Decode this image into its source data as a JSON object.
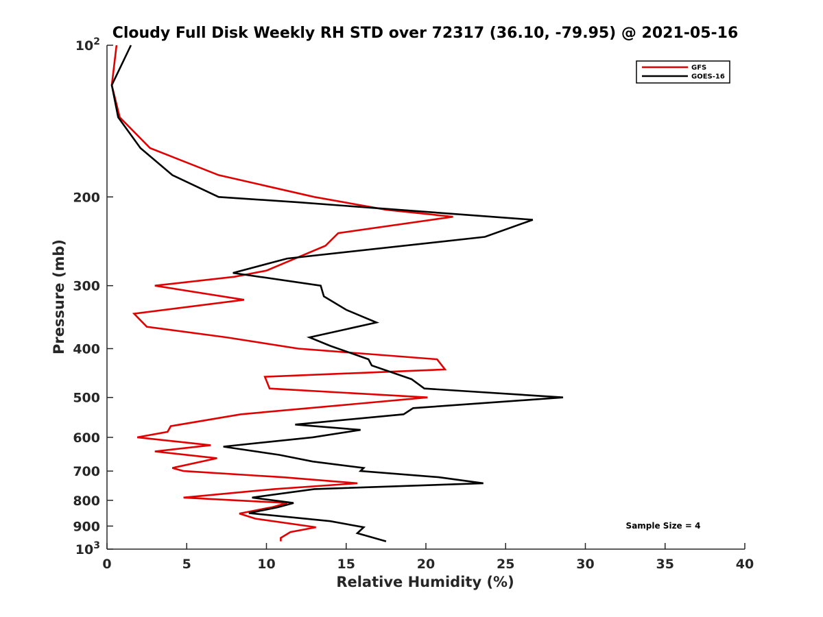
{
  "chart_data": {
    "type": "line",
    "title": "Cloudy Full Disk Weekly RH STD over 72317 (36.10, -79.95) @ 2021-05-16",
    "xlabel": "Relative Humidity (%)",
    "ylabel": "Pressure (mb)",
    "xlim": [
      0,
      40
    ],
    "ylim": [
      100,
      1000
    ],
    "y_scale": "log",
    "y_reversed": true,
    "grid": false,
    "legend_position": "top-right",
    "x_ticks": [
      "0",
      "5",
      "10",
      "15",
      "20",
      "25",
      "30",
      "35",
      "40"
    ],
    "y_ticks": [
      {
        "value": 100,
        "base": "10",
        "exp": "2"
      },
      {
        "value": 200,
        "label": "200"
      },
      {
        "value": 300,
        "label": "300"
      },
      {
        "value": 400,
        "label": "400"
      },
      {
        "value": 500,
        "label": "500"
      },
      {
        "value": 600,
        "label": "600"
      },
      {
        "value": 700,
        "label": "700"
      },
      {
        "value": 800,
        "label": "800"
      },
      {
        "value": 900,
        "label": "900"
      },
      {
        "value": 1000,
        "base": "10",
        "exp": "3"
      }
    ],
    "annotation": "Sample Size = 4",
    "series": [
      {
        "name": "GFS",
        "color": "#e00000",
        "points": [
          [
            0.6,
            100
          ],
          [
            0.3,
            120
          ],
          [
            0.8,
            139
          ],
          [
            2.7,
            160
          ],
          [
            7.0,
            181
          ],
          [
            13.0,
            200
          ],
          [
            17.5,
            212
          ],
          [
            21.7,
            219
          ],
          [
            14.5,
            236
          ],
          [
            13.7,
            250
          ],
          [
            10.0,
            280
          ],
          [
            8.0,
            288
          ],
          [
            3.0,
            300
          ],
          [
            8.6,
            320
          ],
          [
            1.7,
            341
          ],
          [
            2.5,
            362
          ],
          [
            7.5,
            380
          ],
          [
            12.0,
            400
          ],
          [
            20.7,
            420
          ],
          [
            21.2,
            440
          ],
          [
            9.9,
            455
          ],
          [
            10.2,
            480
          ],
          [
            20.1,
            500
          ],
          [
            8.4,
            540
          ],
          [
            4.0,
            570
          ],
          [
            3.8,
            585
          ],
          [
            1.9,
            600
          ],
          [
            6.5,
            622
          ],
          [
            3.0,
            640
          ],
          [
            6.9,
            660
          ],
          [
            4.1,
            690
          ],
          [
            4.8,
            700
          ],
          [
            11.0,
            720
          ],
          [
            15.7,
            740
          ],
          [
            10.5,
            760
          ],
          [
            4.8,
            790
          ],
          [
            11.3,
            810
          ],
          [
            10.4,
            825
          ],
          [
            8.3,
            850
          ],
          [
            9.3,
            870
          ],
          [
            13.1,
            905
          ],
          [
            11.5,
            925
          ],
          [
            10.9,
            950
          ],
          [
            10.9,
            965
          ]
        ]
      },
      {
        "name": "GOES-16",
        "color": "#000000",
        "points": [
          [
            1.5,
            100
          ],
          [
            0.3,
            120
          ],
          [
            0.7,
            139
          ],
          [
            2.1,
            160
          ],
          [
            4.1,
            181
          ],
          [
            7.0,
            200
          ],
          [
            12.0,
            205
          ],
          [
            26.7,
            222
          ],
          [
            23.7,
            240
          ],
          [
            11.3,
            265
          ],
          [
            7.9,
            283
          ],
          [
            13.4,
            300
          ],
          [
            13.6,
            315
          ],
          [
            15.0,
            335
          ],
          [
            16.9,
            355
          ],
          [
            12.7,
            380
          ],
          [
            14.0,
            395
          ],
          [
            16.4,
            420
          ],
          [
            16.6,
            432
          ],
          [
            19.1,
            460
          ],
          [
            19.9,
            480
          ],
          [
            28.6,
            500
          ],
          [
            19.2,
            525
          ],
          [
            18.6,
            540
          ],
          [
            11.8,
            566
          ],
          [
            15.9,
            580
          ],
          [
            12.9,
            600
          ],
          [
            7.3,
            626
          ],
          [
            10.8,
            650
          ],
          [
            12.9,
            670
          ],
          [
            16.1,
            690
          ],
          [
            15.9,
            700
          ],
          [
            20.8,
            720
          ],
          [
            23.6,
            740
          ],
          [
            13.0,
            760
          ],
          [
            9.1,
            790
          ],
          [
            11.7,
            810
          ],
          [
            10.7,
            826
          ],
          [
            8.9,
            848
          ],
          [
            14.0,
            880
          ],
          [
            16.1,
            905
          ],
          [
            15.7,
            930
          ],
          [
            17.5,
            965
          ]
        ]
      }
    ]
  }
}
